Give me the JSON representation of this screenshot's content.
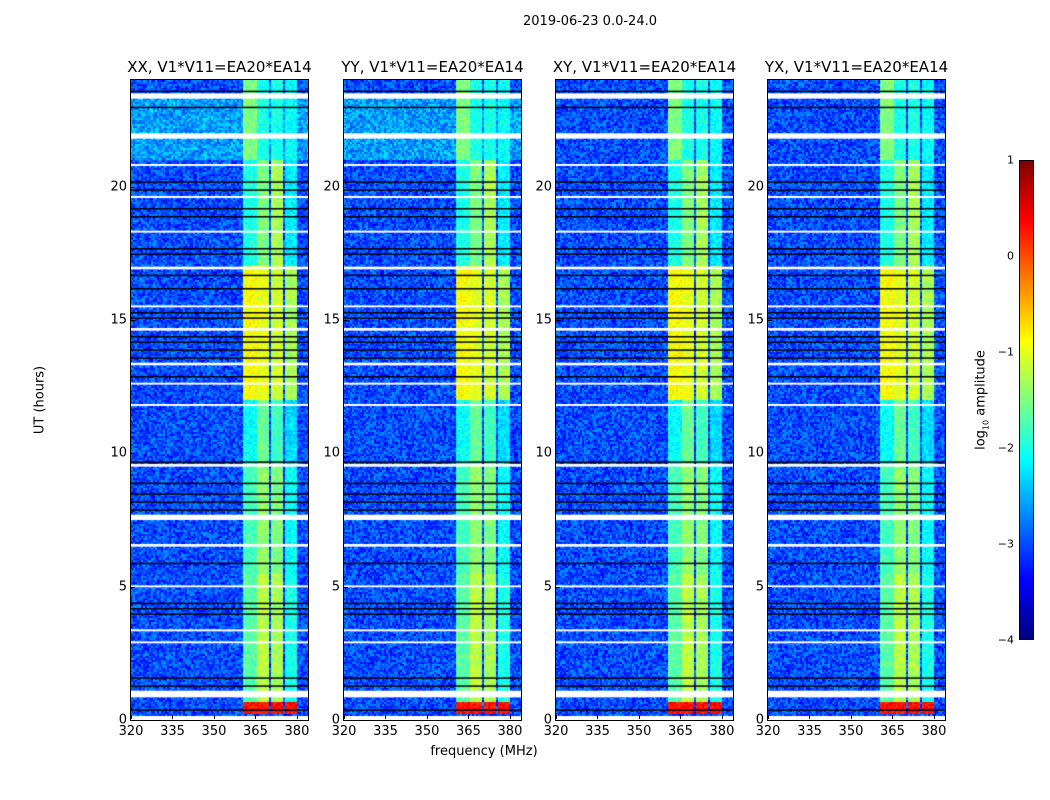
{
  "chart_data": {
    "type": "heatmap",
    "title": "2019-06-23 0.0-24.0",
    "xlabel": "frequency (MHz)",
    "ylabel": "UT (hours)",
    "xlim": [
      320,
      384
    ],
    "ylim": [
      0,
      24
    ],
    "xticks": [
      "320",
      "335",
      "350",
      "365",
      "380"
    ],
    "xtick_values": [
      320,
      335,
      350,
      365,
      380
    ],
    "yticks": [
      "0",
      "5",
      "10",
      "15",
      "20"
    ],
    "ytick_values": [
      0,
      5,
      10,
      15,
      20
    ],
    "panels": [
      {
        "title": "XX, V1*V11=EA20*EA14"
      },
      {
        "title": "YY, V1*V11=EA20*EA14"
      },
      {
        "title": "XY, V1*V11=EA20*EA14"
      },
      {
        "title": "YX, V1*V11=EA20*EA14"
      }
    ],
    "colorbar": {
      "label_main": "log",
      "label_sub": "10",
      "label_rest": " amplitude",
      "range": [
        -4,
        1
      ],
      "ticks": [
        "1",
        "0",
        "−1",
        "−2",
        "−3",
        "−4"
      ],
      "tick_values": [
        1,
        0,
        -1,
        -2,
        -3,
        -4
      ],
      "colormap": "jet"
    },
    "background_level": -3.0,
    "bands_mhz": [
      [
        360.5,
        365.3
      ],
      [
        365.7,
        370.2
      ],
      [
        370.7,
        374.9
      ],
      [
        375.4,
        379.8
      ]
    ],
    "band_levels_by_time": [
      {
        "t": [
          0.2,
          0.65
        ],
        "levels": [
          0.3,
          0.3,
          0.3,
          0.3
        ]
      },
      {
        "t": [
          0.65,
          5.5
        ],
        "levels": [
          -1.7,
          -1.2,
          -1.3,
          -2.0
        ]
      },
      {
        "t": [
          5.5,
          9.5
        ],
        "levels": [
          -1.8,
          -1.4,
          -1.5,
          -2.1
        ]
      },
      {
        "t": [
          9.5,
          12
        ],
        "levels": [
          -2.1,
          -1.6,
          -1.8,
          -2.3
        ]
      },
      {
        "t": [
          12,
          17
        ],
        "levels": [
          -0.9,
          -1.0,
          -1.1,
          -1.3
        ]
      },
      {
        "t": [
          17,
          21
        ],
        "levels": [
          -2.0,
          -1.5,
          -1.3,
          -2.2
        ]
      },
      {
        "t": [
          21,
          24
        ],
        "levels": [
          -1.5,
          -2.0,
          -2.0,
          -2.1
        ]
      }
    ],
    "blank_rows_hours": [
      [
        0.0,
        0.15
      ],
      [
        0.85,
        1.1
      ],
      [
        6.5,
        6.6
      ],
      [
        7.5,
        7.7
      ],
      [
        9.5,
        9.6
      ],
      [
        13.3,
        13.4
      ],
      [
        14.6,
        14.7
      ],
      [
        16.9,
        17.0
      ],
      [
        21.8,
        22.0
      ],
      [
        23.3,
        23.5
      ],
      [
        2.9,
        2.95
      ],
      [
        3.35,
        3.4
      ],
      [
        5.0,
        5.05
      ],
      [
        11.8,
        11.85
      ],
      [
        12.6,
        12.65
      ],
      [
        15.5,
        15.55
      ],
      [
        18.3,
        18.35
      ],
      [
        19.6,
        19.65
      ],
      [
        20.8,
        20.85
      ]
    ],
    "flag_lines_hours": [
      0.4,
      1.3,
      1.6,
      4.0,
      4.2,
      4.4,
      5.9,
      7.9,
      8.2,
      8.5,
      8.9,
      9.7,
      12.9,
      13.6,
      13.9,
      14.2,
      14.4,
      15.1,
      15.3,
      16.2,
      16.7,
      17.5,
      17.7,
      18.9,
      19.2,
      19.9,
      20.2,
      23.0,
      23.6
    ]
  }
}
